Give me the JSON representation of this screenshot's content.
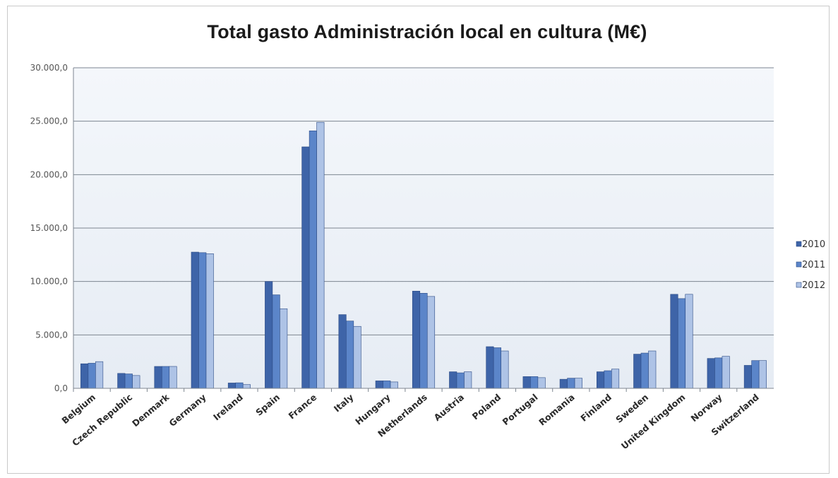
{
  "chart_data": {
    "type": "bar",
    "title": "Total gasto Administración local en cultura (M€)",
    "xlabel": "",
    "ylabel": "",
    "ylim": [
      0,
      30000
    ],
    "y_ticks": [
      0,
      5000,
      10000,
      15000,
      20000,
      25000,
      30000
    ],
    "y_tick_labels": [
      "0,0",
      "5.000,0",
      "10.000,0",
      "15.000,0",
      "20.000,0",
      "25.000,0",
      "30.000,0"
    ],
    "grid": true,
    "legend_position": "right",
    "categories": [
      "Belgium",
      "Czech Republic",
      "Denmark",
      "Germany",
      "Ireland",
      "Spain",
      "France",
      "Italy",
      "Hungary",
      "Netherlands",
      "Austria",
      "Poland",
      "Portugal",
      "Romania",
      "Finland",
      "Sweden",
      "United Kingdom",
      "Norway",
      "Switzerland"
    ],
    "series": [
      {
        "name": "2010",
        "color": "#3e64a8",
        "values": [
          2300,
          1400,
          2050,
          12750,
          500,
          10000,
          22600,
          6900,
          700,
          9100,
          1550,
          3900,
          1100,
          850,
          1550,
          3200,
          8800,
          2800,
          2150
        ]
      },
      {
        "name": "2011",
        "color": "#5b85c9",
        "values": [
          2350,
          1350,
          2050,
          12700,
          520,
          8750,
          24100,
          6300,
          700,
          8900,
          1450,
          3800,
          1100,
          950,
          1650,
          3300,
          8400,
          2850,
          2600
        ]
      },
      {
        "name": "2012",
        "color": "#aec3e6",
        "values": [
          2500,
          1200,
          2050,
          12600,
          350,
          7450,
          24900,
          5800,
          600,
          8600,
          1550,
          3500,
          1000,
          950,
          1800,
          3500,
          8800,
          3000,
          2600
        ]
      }
    ]
  }
}
